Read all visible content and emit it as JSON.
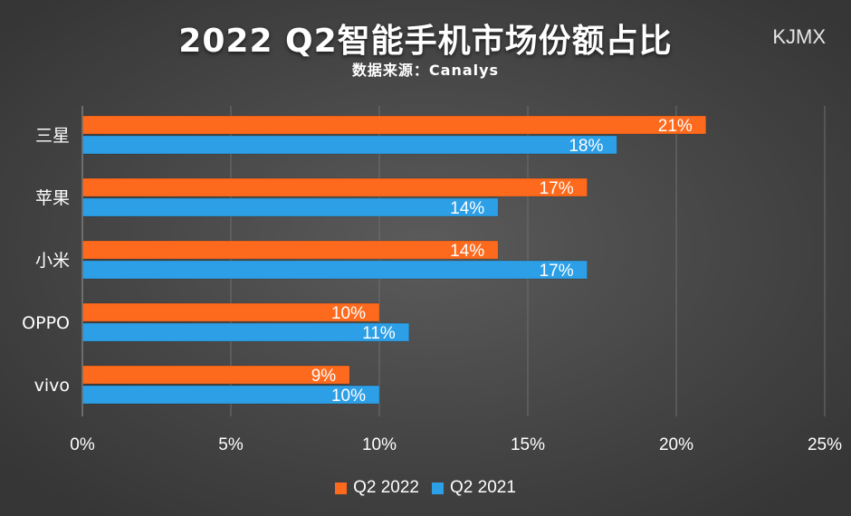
{
  "chart_data": {
    "type": "bar",
    "orientation": "horizontal",
    "title": "2022 Q2智能手机市场份额占比",
    "subtitle": "数据来源：Canalys",
    "watermark": "KJMX",
    "categories": [
      "三星",
      "苹果",
      "小米",
      "OPPO",
      "vivo"
    ],
    "series": [
      {
        "name": "Q2 2022",
        "color": "#fd6a1d",
        "values": [
          21,
          17,
          14,
          10,
          9
        ]
      },
      {
        "name": "Q2 2021",
        "color": "#2d9fe6",
        "values": [
          18,
          14,
          17,
          11,
          10
        ]
      }
    ],
    "data_labels": [
      [
        "21%",
        "17%",
        "14%",
        "10%",
        "9%"
      ],
      [
        "18%",
        "14%",
        "17%",
        "11%",
        "10%"
      ]
    ],
    "xlim": [
      0,
      25
    ],
    "xticks": [
      0,
      5,
      10,
      15,
      20,
      25
    ],
    "xtick_labels": [
      "0%",
      "5%",
      "10%",
      "15%",
      "20%",
      "25%"
    ],
    "grid": "vertical",
    "legend_position": "bottom-center"
  }
}
